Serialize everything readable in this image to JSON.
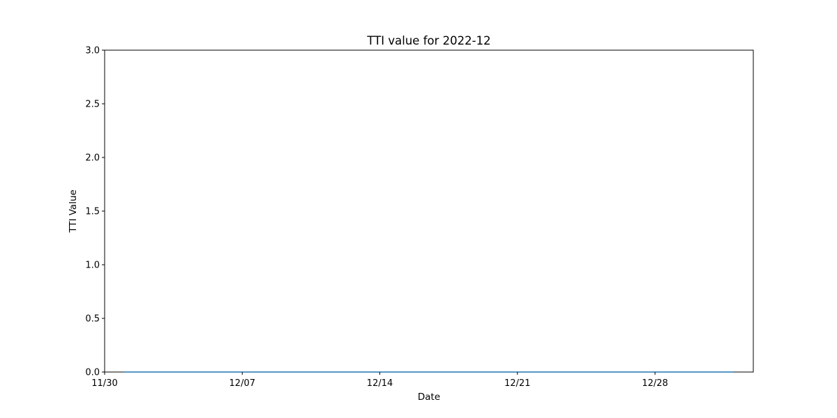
{
  "chart_data": {
    "type": "line",
    "title": "TTI value for 2022-12",
    "xlabel": "Date",
    "ylabel": "TTI Value",
    "x_start": "2022-11-30",
    "x_end": "2023-01-02",
    "xticks": [
      {
        "date": "2022-11-30",
        "label": "11/30"
      },
      {
        "date": "2022-12-07",
        "label": "12/07"
      },
      {
        "date": "2022-12-14",
        "label": "12/14"
      },
      {
        "date": "2022-12-21",
        "label": "12/21"
      },
      {
        "date": "2022-12-28",
        "label": "12/28"
      }
    ],
    "ylim": [
      0,
      3
    ],
    "yticks": [
      {
        "value": 0,
        "label": "0.0"
      },
      {
        "value": 0.5,
        "label": "0.5"
      },
      {
        "value": 1,
        "label": "1.0"
      },
      {
        "value": 1.5,
        "label": "1.5"
      },
      {
        "value": 2,
        "label": "2.0"
      },
      {
        "value": 2.5,
        "label": "2.5"
      },
      {
        "value": 3,
        "label": "3.0"
      }
    ],
    "grid": false,
    "legend": "none",
    "series": [
      {
        "color": "#1f77b4",
        "points": [
          {
            "x": "2022-12-01",
            "y": 0
          },
          {
            "x": "2022-12-02",
            "y": 0
          },
          {
            "x": "2022-12-03",
            "y": 0
          },
          {
            "x": "2022-12-04",
            "y": 0
          },
          {
            "x": "2022-12-05",
            "y": 0
          },
          {
            "x": "2022-12-06",
            "y": 0
          },
          {
            "x": "2022-12-07",
            "y": 0
          },
          {
            "x": "2022-12-08",
            "y": 0
          },
          {
            "x": "2022-12-09",
            "y": 0
          },
          {
            "x": "2022-12-10",
            "y": 0
          },
          {
            "x": "2022-12-11",
            "y": 0
          },
          {
            "x": "2022-12-12",
            "y": 0
          },
          {
            "x": "2022-12-13",
            "y": 0
          },
          {
            "x": "2022-12-14",
            "y": 0
          },
          {
            "x": "2022-12-15",
            "y": 0
          },
          {
            "x": "2022-12-16",
            "y": 0
          },
          {
            "x": "2022-12-17",
            "y": 0
          },
          {
            "x": "2022-12-18",
            "y": 0
          },
          {
            "x": "2022-12-19",
            "y": 0
          },
          {
            "x": "2022-12-20",
            "y": 0
          },
          {
            "x": "2022-12-21",
            "y": 0
          },
          {
            "x": "2022-12-22",
            "y": 0
          },
          {
            "x": "2022-12-23",
            "y": 0
          },
          {
            "x": "2022-12-24",
            "y": 0
          },
          {
            "x": "2022-12-25",
            "y": 0
          },
          {
            "x": "2022-12-26",
            "y": 0
          },
          {
            "x": "2022-12-27",
            "y": 0
          },
          {
            "x": "2022-12-28",
            "y": 0
          },
          {
            "x": "2022-12-29",
            "y": 0
          },
          {
            "x": "2022-12-30",
            "y": 0
          },
          {
            "x": "2022-12-31",
            "y": 0
          },
          {
            "x": "2023-01-01",
            "y": 0
          }
        ]
      }
    ]
  }
}
